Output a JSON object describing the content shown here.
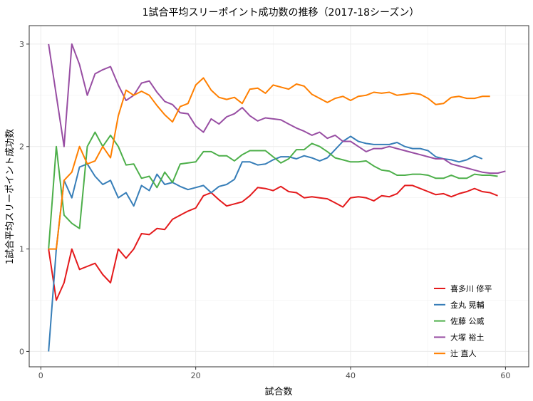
{
  "chart_data": {
    "type": "line",
    "title": "1試合平均スリーポイント成功数の推移（2017-18シーズン）",
    "xlabel": "試合数",
    "ylabel": "1試合平均スリーポイント成功数",
    "xlim": [
      -1.5,
      63
    ],
    "ylim": [
      -0.15,
      3.18
    ],
    "xticks": [
      0,
      20,
      40,
      60
    ],
    "yticks": [
      0,
      1,
      2,
      3
    ],
    "grid": true,
    "legend_position": "bottom-right",
    "series": [
      {
        "name": "喜多川 修平",
        "color": "#E41A1C",
        "x": [
          1,
          2,
          3,
          4,
          5,
          6,
          7,
          8,
          9,
          10,
          11,
          12,
          13,
          14,
          15,
          16,
          17,
          18,
          19,
          20,
          21,
          22,
          23,
          24,
          25,
          26,
          27,
          28,
          29,
          30,
          31,
          32,
          33,
          34,
          35,
          36,
          37,
          38,
          39,
          40,
          41,
          42,
          43,
          44,
          45,
          46,
          47,
          48,
          49,
          50,
          51,
          52,
          53,
          54,
          55,
          56,
          57,
          58,
          59
        ],
        "y": [
          1.0,
          0.5,
          0.67,
          1.0,
          0.8,
          0.83,
          0.86,
          0.75,
          0.67,
          1.0,
          0.91,
          1.0,
          1.15,
          1.14,
          1.2,
          1.19,
          1.29,
          1.33,
          1.37,
          1.4,
          1.52,
          1.55,
          1.48,
          1.42,
          1.44,
          1.46,
          1.52,
          1.6,
          1.59,
          1.57,
          1.61,
          1.56,
          1.55,
          1.5,
          1.51,
          1.5,
          1.49,
          1.45,
          1.41,
          1.5,
          1.51,
          1.5,
          1.47,
          1.52,
          1.51,
          1.54,
          1.62,
          1.62,
          1.59,
          1.56,
          1.53,
          1.54,
          1.51,
          1.54,
          1.56,
          1.59,
          1.56,
          1.55,
          1.52
        ]
      },
      {
        "name": "金丸 晃輔",
        "color": "#377EB8",
        "x": [
          1,
          2,
          3,
          4,
          5,
          6,
          7,
          8,
          9,
          10,
          11,
          12,
          13,
          14,
          15,
          16,
          17,
          18,
          19,
          20,
          21,
          22,
          23,
          24,
          25,
          26,
          27,
          28,
          29,
          30,
          31,
          32,
          33,
          34,
          35,
          36,
          37,
          38,
          39,
          40,
          41,
          42,
          43,
          44,
          45,
          46,
          47,
          48,
          49,
          50,
          51,
          52,
          53,
          54,
          55,
          56,
          57
        ],
        "y": [
          0.0,
          1.0,
          1.67,
          1.5,
          1.8,
          1.83,
          1.71,
          1.63,
          1.67,
          1.5,
          1.55,
          1.42,
          1.62,
          1.57,
          1.73,
          1.63,
          1.65,
          1.61,
          1.58,
          1.6,
          1.62,
          1.55,
          1.61,
          1.63,
          1.68,
          1.85,
          1.85,
          1.82,
          1.83,
          1.87,
          1.9,
          1.9,
          1.88,
          1.91,
          1.89,
          1.86,
          1.89,
          1.97,
          2.05,
          2.1,
          2.05,
          2.03,
          2.02,
          2.02,
          2.02,
          2.04,
          2.0,
          1.98,
          1.98,
          1.96,
          1.9,
          1.88,
          1.87,
          1.85,
          1.87,
          1.91,
          1.88
        ]
      },
      {
        "name": "佐藤 公威",
        "color": "#4DAF4A",
        "x": [
          1,
          2,
          3,
          4,
          5,
          6,
          7,
          8,
          9,
          10,
          11,
          12,
          13,
          14,
          15,
          16,
          17,
          18,
          19,
          20,
          21,
          22,
          23,
          24,
          25,
          26,
          27,
          28,
          29,
          30,
          31,
          32,
          33,
          34,
          35,
          36,
          37,
          38,
          39,
          40,
          41,
          42,
          43,
          44,
          45,
          46,
          47,
          48,
          49,
          50,
          51,
          52,
          53,
          54,
          55,
          56,
          57,
          58,
          59
        ],
        "y": [
          1.0,
          2.0,
          1.33,
          1.25,
          1.2,
          2.0,
          2.14,
          2.0,
          2.11,
          2.0,
          1.82,
          1.83,
          1.69,
          1.71,
          1.6,
          1.75,
          1.65,
          1.83,
          1.84,
          1.85,
          1.95,
          1.95,
          1.91,
          1.91,
          1.86,
          1.92,
          1.96,
          1.96,
          1.96,
          1.9,
          1.84,
          1.88,
          1.97,
          1.97,
          2.03,
          2.0,
          1.95,
          1.89,
          1.87,
          1.85,
          1.85,
          1.86,
          1.81,
          1.77,
          1.76,
          1.72,
          1.72,
          1.73,
          1.73,
          1.72,
          1.69,
          1.69,
          1.72,
          1.69,
          1.69,
          1.73,
          1.72,
          1.72,
          1.71
        ]
      },
      {
        "name": "大塚 裕土",
        "color": "#984EA3",
        "x": [
          1,
          2,
          3,
          4,
          5,
          6,
          7,
          8,
          9,
          10,
          11,
          12,
          13,
          14,
          15,
          16,
          17,
          18,
          19,
          20,
          21,
          22,
          23,
          24,
          25,
          26,
          27,
          28,
          29,
          30,
          31,
          32,
          33,
          34,
          35,
          36,
          37,
          38,
          39,
          40,
          41,
          42,
          43,
          44,
          45,
          46,
          47,
          48,
          49,
          50,
          51,
          52,
          53,
          54,
          55,
          56,
          57,
          58,
          59,
          60
        ],
        "y": [
          3.0,
          2.5,
          2.0,
          3.0,
          2.8,
          2.5,
          2.71,
          2.75,
          2.78,
          2.6,
          2.45,
          2.5,
          2.62,
          2.64,
          2.53,
          2.44,
          2.41,
          2.33,
          2.32,
          2.2,
          2.14,
          2.27,
          2.22,
          2.29,
          2.32,
          2.38,
          2.3,
          2.25,
          2.28,
          2.27,
          2.26,
          2.22,
          2.18,
          2.15,
          2.11,
          2.14,
          2.08,
          2.11,
          2.05,
          2.05,
          2.0,
          1.95,
          1.98,
          1.98,
          2.0,
          1.98,
          1.96,
          1.94,
          1.92,
          1.9,
          1.88,
          1.88,
          1.83,
          1.81,
          1.79,
          1.77,
          1.75,
          1.74,
          1.74,
          1.76
        ]
      },
      {
        "name": "辻 直人",
        "color": "#FF7F00",
        "x": [
          1,
          2,
          3,
          4,
          5,
          6,
          7,
          8,
          9,
          10,
          11,
          12,
          13,
          14,
          15,
          16,
          17,
          18,
          19,
          20,
          21,
          22,
          23,
          24,
          25,
          26,
          27,
          28,
          29,
          30,
          31,
          32,
          33,
          34,
          35,
          36,
          37,
          38,
          39,
          40,
          41,
          42,
          43,
          44,
          45,
          46,
          47,
          48,
          49,
          50,
          51,
          52,
          53,
          54,
          55,
          56,
          57,
          58
        ],
        "y": [
          1.0,
          1.0,
          1.67,
          1.75,
          2.0,
          1.83,
          1.86,
          2.0,
          1.89,
          2.3,
          2.55,
          2.5,
          2.54,
          2.5,
          2.4,
          2.31,
          2.24,
          2.39,
          2.42,
          2.6,
          2.67,
          2.55,
          2.48,
          2.46,
          2.48,
          2.42,
          2.56,
          2.57,
          2.52,
          2.6,
          2.58,
          2.56,
          2.61,
          2.59,
          2.51,
          2.47,
          2.43,
          2.47,
          2.49,
          2.45,
          2.49,
          2.5,
          2.53,
          2.52,
          2.53,
          2.5,
          2.51,
          2.52,
          2.51,
          2.47,
          2.41,
          2.42,
          2.48,
          2.49,
          2.47,
          2.47,
          2.49,
          2.49
        ]
      }
    ]
  }
}
